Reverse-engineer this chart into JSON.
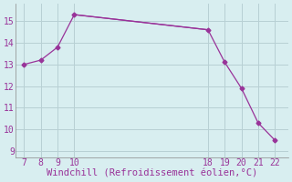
{
  "x": [
    7,
    8,
    9,
    10,
    18,
    19,
    20,
    21,
    22
  ],
  "y": [
    13.0,
    13.2,
    13.8,
    15.3,
    14.6,
    13.1,
    11.9,
    10.3,
    9.5
  ],
  "x_flat_start": 10,
  "x_flat_end": 18,
  "y_flat_start": 15.3,
  "y_flat_end": 14.6,
  "line_color": "#993399",
  "marker": "D",
  "marker_size": 2.5,
  "background_color": "#d8eef0",
  "grid_color": "#b8d0d4",
  "xlabel": "Windchill (Refroidissement éolien,°C)",
  "xlabel_color": "#993399",
  "tick_color": "#993399",
  "xlim": [
    6.5,
    22.8
  ],
  "ylim": [
    8.7,
    15.8
  ],
  "xticks": [
    7,
    8,
    9,
    10,
    18,
    19,
    20,
    21,
    22
  ],
  "yticks": [
    9,
    10,
    11,
    12,
    13,
    14,
    15
  ],
  "tick_fontsize": 7,
  "xlabel_fontsize": 7.5
}
